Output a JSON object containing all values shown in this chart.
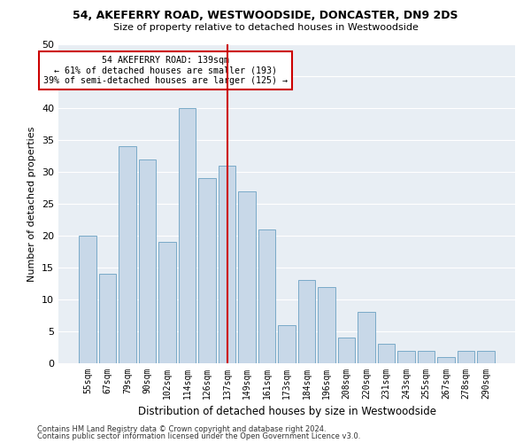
{
  "title1": "54, AKEFERRY ROAD, WESTWOODSIDE, DONCASTER, DN9 2DS",
  "title2": "Size of property relative to detached houses in Westwoodside",
  "xlabel": "Distribution of detached houses by size in Westwoodside",
  "ylabel": "Number of detached properties",
  "categories": [
    "55sqm",
    "67sqm",
    "79sqm",
    "90sqm",
    "102sqm",
    "114sqm",
    "126sqm",
    "137sqm",
    "149sqm",
    "161sqm",
    "173sqm",
    "184sqm",
    "196sqm",
    "208sqm",
    "220sqm",
    "231sqm",
    "243sqm",
    "255sqm",
    "267sqm",
    "278sqm",
    "290sqm"
  ],
  "values": [
    20,
    14,
    34,
    32,
    19,
    40,
    29,
    31,
    27,
    21,
    6,
    13,
    12,
    4,
    8,
    3,
    2,
    2,
    1,
    2,
    2
  ],
  "bar_color": "#c8d8e8",
  "bar_edgecolor": "#7aaac8",
  "vline_x_index": 7,
  "vline_color": "#cc0000",
  "annotation_line1": "54 AKEFERRY ROAD: 139sqm",
  "annotation_line2": "← 61% of detached houses are smaller (193)",
  "annotation_line3": "39% of semi-detached houses are larger (125) →",
  "annotation_box_color": "#ffffff",
  "annotation_box_edgecolor": "#cc0000",
  "ylim": [
    0,
    50
  ],
  "yticks": [
    0,
    5,
    10,
    15,
    20,
    25,
    30,
    35,
    40,
    45,
    50
  ],
  "background_color": "#e8eef4",
  "grid_color": "#ffffff",
  "footer1": "Contains HM Land Registry data © Crown copyright and database right 2024.",
  "footer2": "Contains public sector information licensed under the Open Government Licence v3.0."
}
